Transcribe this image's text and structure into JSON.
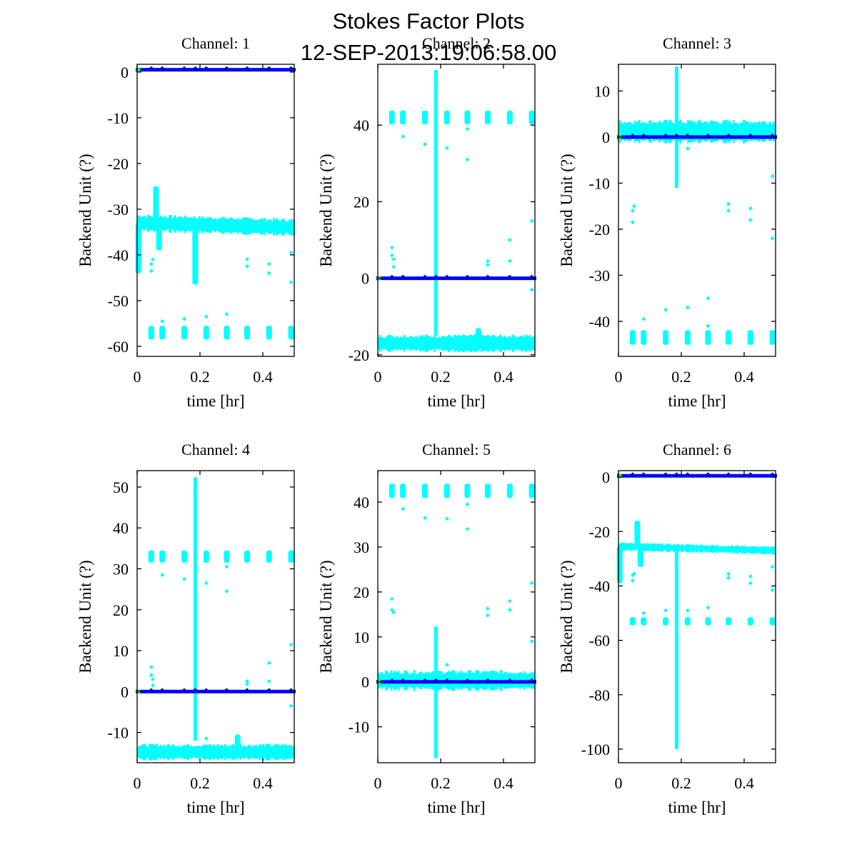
{
  "chart_data": {
    "type": "scatter",
    "title": "Stokes Factor Plots",
    "subtitle": "12-SEP-2013:19:06:58.00",
    "colors": {
      "primary": "#00ffff",
      "secondary": "#0000ff",
      "start": "#00ff00"
    },
    "panels": [
      {
        "title": "Channel: 1",
        "xlabel": "time [hr]",
        "ylabel": "Backend Unit (?)",
        "xlim": [
          0,
          0.5
        ],
        "ylim": [
          -62.2,
          1.7
        ],
        "xticks": [
          0,
          0.2,
          0.4
        ],
        "xtick_labels": [
          "0",
          "0.2",
          "0.4"
        ],
        "yticks": [
          0,
          -10,
          -20,
          -30,
          -40,
          -50,
          -60
        ],
        "ytick_labels": [
          "0",
          "-10",
          "-20",
          "-30",
          "-40",
          "-50",
          "-60"
        ],
        "baseline": 0.5,
        "band": {
          "center": -33,
          "halfwidth": 1.5,
          "drift_end": -34
        },
        "bumps": [
          {
            "x": 0.06,
            "to": -25
          },
          {
            "x": 0.07,
            "to": -39
          },
          {
            "x": 0.004,
            "to": -44
          },
          {
            "x": 0.185,
            "to": -46.5
          }
        ],
        "clusters": {
          "xs": [
            0.045,
            0.08,
            0.15,
            0.22,
            0.285,
            0.35,
            0.42,
            0.49
          ],
          "center": -57,
          "halfwidth": 1.5
        },
        "outliers": [
          [
            0.045,
            -42
          ],
          [
            0.05,
            -41
          ],
          [
            0.045,
            -43.5
          ],
          [
            0.08,
            -54.5
          ],
          [
            0.15,
            -54
          ],
          [
            0.22,
            -53.5
          ],
          [
            0.285,
            -53
          ],
          [
            0.35,
            -41
          ],
          [
            0.35,
            -42.5
          ],
          [
            0.42,
            -42
          ],
          [
            0.42,
            -44
          ],
          [
            0.49,
            -39.5
          ],
          [
            0.49,
            -46
          ]
        ],
        "spike": null
      },
      {
        "title": "Channel: 2",
        "xlabel": "time [hr]",
        "ylabel": "Backend Unit (?)",
        "xlim": [
          0,
          0.5
        ],
        "ylim": [
          -20.4,
          55.9
        ],
        "xticks": [
          0,
          0.2,
          0.4
        ],
        "xtick_labels": [
          "0",
          "0.2",
          "0.4"
        ],
        "yticks": [
          40,
          20,
          0,
          -20
        ],
        "ytick_labels": [
          "40",
          "20",
          "0",
          "-20"
        ],
        "baseline": 0,
        "band": {
          "center": -17,
          "halfwidth": 1.8,
          "drift_end": -17
        },
        "bumps": [
          {
            "x": 0.32,
            "to": -13
          }
        ],
        "clusters": {
          "xs": [
            0.045,
            0.08,
            0.15,
            0.22,
            0.285,
            0.35,
            0.42,
            0.49
          ],
          "center": 42,
          "halfwidth": 1.8
        },
        "outliers": [
          [
            0.045,
            8
          ],
          [
            0.045,
            6
          ],
          [
            0.05,
            5
          ],
          [
            0.05,
            3
          ],
          [
            0.08,
            37
          ],
          [
            0.15,
            35
          ],
          [
            0.22,
            34
          ],
          [
            0.285,
            39
          ],
          [
            0.285,
            31
          ],
          [
            0.35,
            4.5
          ],
          [
            0.35,
            3.5
          ],
          [
            0.42,
            10
          ],
          [
            0.42,
            4.5
          ],
          [
            0.49,
            15
          ],
          [
            0.49,
            -3
          ]
        ],
        "spike": {
          "x": 0.185,
          "from": -15,
          "to": 54
        }
      },
      {
        "title": "Channel: 3",
        "xlabel": "time [hr]",
        "ylabel": "Backend Unit (?)",
        "xlim": [
          0,
          0.5
        ],
        "ylim": [
          -47.6,
          15.8
        ],
        "xticks": [
          0,
          0.2,
          0.4
        ],
        "xtick_labels": [
          "0",
          "0.2",
          "0.4"
        ],
        "yticks": [
          10,
          0,
          -10,
          -20,
          -30,
          -40
        ],
        "ytick_labels": [
          "10",
          "0",
          "-10",
          "-20",
          "-30",
          "-40"
        ],
        "baseline": 0,
        "band": {
          "center": 1.2,
          "halfwidth": 2,
          "drift_end": 1.2
        },
        "bumps": [],
        "clusters": {
          "xs": [
            0.045,
            0.08,
            0.15,
            0.22,
            0.285,
            0.35,
            0.42,
            0.49
          ],
          "center": -43.5,
          "halfwidth": 1.6
        },
        "outliers": [
          [
            0.045,
            -16
          ],
          [
            0.05,
            -15
          ],
          [
            0.045,
            -18.5
          ],
          [
            0.08,
            -39.5
          ],
          [
            0.15,
            -37.5
          ],
          [
            0.22,
            -37
          ],
          [
            0.22,
            -2.5
          ],
          [
            0.285,
            -35
          ],
          [
            0.285,
            -41
          ],
          [
            0.35,
            -14.5
          ],
          [
            0.35,
            -16
          ],
          [
            0.42,
            -15.5
          ],
          [
            0.42,
            -18
          ],
          [
            0.49,
            -8.5
          ],
          [
            0.49,
            -22
          ]
        ],
        "spike": {
          "x": 0.185,
          "from": -11,
          "to": 15
        }
      },
      {
        "title": "Channel: 4",
        "xlabel": "time [hr]",
        "ylabel": "Backend Unit (?)",
        "xlim": [
          0,
          0.5
        ],
        "ylim": [
          -17.4,
          54
        ],
        "xticks": [
          0,
          0.2,
          0.4
        ],
        "xtick_labels": [
          "0",
          "0.2",
          "0.4"
        ],
        "yticks": [
          50,
          40,
          30,
          20,
          10,
          0,
          -10
        ],
        "ytick_labels": [
          "50",
          "40",
          "30",
          "20",
          "10",
          "0",
          "-10"
        ],
        "baseline": 0,
        "band": {
          "center": -14.8,
          "halfwidth": 1.6,
          "drift_end": -14.8
        },
        "bumps": [
          {
            "x": 0.32,
            "to": -10.5
          }
        ],
        "clusters": {
          "xs": [
            0.045,
            0.08,
            0.15,
            0.22,
            0.285,
            0.35,
            0.42,
            0.49
          ],
          "center": 33,
          "halfwidth": 1.5
        },
        "outliers": [
          [
            0.045,
            6
          ],
          [
            0.045,
            4
          ],
          [
            0.05,
            3
          ],
          [
            0.05,
            1.5
          ],
          [
            0.08,
            28.5
          ],
          [
            0.15,
            27.5
          ],
          [
            0.22,
            26.5
          ],
          [
            0.22,
            -11.5
          ],
          [
            0.285,
            30.5
          ],
          [
            0.285,
            24.5
          ],
          [
            0.35,
            2.5
          ],
          [
            0.35,
            1.8
          ],
          [
            0.42,
            7
          ],
          [
            0.42,
            2.5
          ],
          [
            0.49,
            11.5
          ],
          [
            0.49,
            -3.5
          ]
        ],
        "spike": {
          "x": 0.185,
          "from": -12,
          "to": 52
        }
      },
      {
        "title": "Channel: 5",
        "xlabel": "time [hr]",
        "ylabel": "Backend Unit (?)",
        "xlim": [
          0,
          0.5
        ],
        "ylim": [
          -18,
          47
        ],
        "xticks": [
          0,
          0.2,
          0.4
        ],
        "xtick_labels": [
          "0",
          "0.2",
          "0.4"
        ],
        "yticks": [
          40,
          30,
          20,
          10,
          0,
          -10
        ],
        "ytick_labels": [
          "40",
          "30",
          "20",
          "10",
          "0",
          "-10"
        ],
        "baseline": 0,
        "band": {
          "center": 0.3,
          "halfwidth": 1.8,
          "drift_end": 0.3
        },
        "bumps": [],
        "clusters": {
          "xs": [
            0.045,
            0.08,
            0.15,
            0.22,
            0.285,
            0.35,
            0.42,
            0.49
          ],
          "center": 42.5,
          "halfwidth": 1.6
        },
        "outliers": [
          [
            0.045,
            18.5
          ],
          [
            0.045,
            16
          ],
          [
            0.05,
            15.5
          ],
          [
            0.08,
            38.5
          ],
          [
            0.15,
            36.5
          ],
          [
            0.22,
            36.3
          ],
          [
            0.22,
            3.8
          ],
          [
            0.285,
            39.5
          ],
          [
            0.285,
            34
          ],
          [
            0.35,
            16.3
          ],
          [
            0.35,
            14.8
          ],
          [
            0.42,
            18
          ],
          [
            0.42,
            16
          ],
          [
            0.49,
            22
          ],
          [
            0.49,
            9
          ]
        ],
        "spike": {
          "x": 0.185,
          "from": -17,
          "to": 12
        }
      },
      {
        "title": "Channel: 6",
        "xlabel": "time [hr]",
        "ylabel": "Backend Unit (?)",
        "xlim": [
          0,
          0.5
        ],
        "ylim": [
          -105,
          2.4
        ],
        "xticks": [
          0,
          0.2,
          0.4
        ],
        "xtick_labels": [
          "0",
          "0.2",
          "0.4"
        ],
        "yticks": [
          0,
          -20,
          -40,
          -60,
          -80,
          -100
        ],
        "ytick_labels": [
          "0",
          "-20",
          "-40",
          "-60",
          "-80",
          "-100"
        ],
        "baseline": 0.5,
        "band": {
          "center": -25.5,
          "halfwidth": 1.2,
          "drift_end": -27
        },
        "bumps": [
          {
            "x": 0.06,
            "to": -16
          },
          {
            "x": 0.07,
            "to": -33
          },
          {
            "x": 0.004,
            "to": -39
          }
        ],
        "clusters": {
          "xs": [
            0.045,
            0.08,
            0.15,
            0.22,
            0.285,
            0.35,
            0.42,
            0.49
          ],
          "center": -53,
          "halfwidth": 1.5
        },
        "outliers": [
          [
            0.045,
            -36
          ],
          [
            0.05,
            -35.5
          ],
          [
            0.045,
            -38
          ],
          [
            0.08,
            -50
          ],
          [
            0.15,
            -49
          ],
          [
            0.22,
            -49
          ],
          [
            0.285,
            -48
          ],
          [
            0.35,
            -35.5
          ],
          [
            0.35,
            -37
          ],
          [
            0.42,
            -36.5
          ],
          [
            0.42,
            -39
          ],
          [
            0.49,
            -33
          ],
          [
            0.49,
            -41.5
          ]
        ],
        "spike": {
          "x": 0.185,
          "from": -100,
          "to": -27
        }
      }
    ]
  }
}
